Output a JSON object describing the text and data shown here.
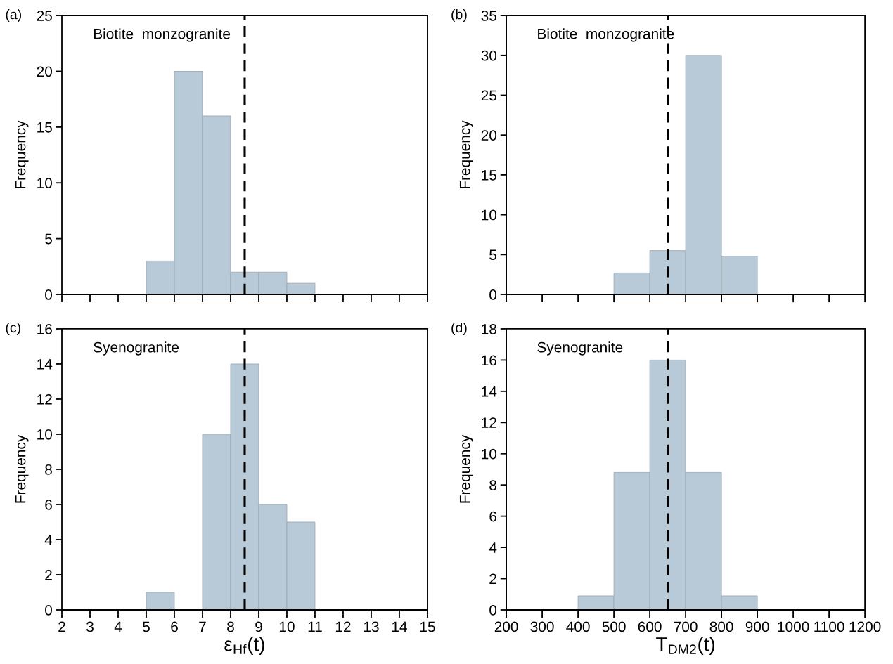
{
  "chart_data": [
    {
      "type": "histogram",
      "bins": [
        5,
        6,
        7,
        8,
        9,
        10,
        11
      ],
      "values": [
        3,
        20,
        16,
        2,
        2,
        1
      ],
      "color": "#b8cad7",
      "ylabel": "Frequency",
      "xlim": [
        2,
        15
      ],
      "xticks": [
        2,
        3,
        4,
        5,
        6,
        7,
        8,
        9,
        10,
        11,
        12,
        13,
        14,
        15
      ],
      "ylim": [
        0,
        25
      ],
      "yticks": [
        0,
        5,
        10,
        15,
        20,
        25
      ],
      "tick_labels": "y",
      "annotations": [
        "(a)",
        "Biotite  monzogranite"
      ],
      "ref_lines": [
        {
          "axis": "x",
          "value": 8.5,
          "line_style": "dashed",
          "color": "#000000"
        }
      ]
    },
    {
      "type": "histogram",
      "bins": [
        500,
        600,
        700,
        800,
        900
      ],
      "values": [
        2.7,
        5.5,
        30,
        4.8
      ],
      "color": "#b8cad7",
      "ylabel": "Frequency",
      "xlim": [
        200,
        1200
      ],
      "xticks": [
        200,
        300,
        400,
        500,
        600,
        700,
        800,
        900,
        1000,
        1100,
        1200
      ],
      "ylim": [
        0,
        35
      ],
      "yticks": [
        0,
        5,
        10,
        15,
        20,
        25,
        30,
        35
      ],
      "tick_labels": "y",
      "annotations": [
        "(b)",
        "Biotite  monzogranite"
      ],
      "ref_lines": [
        {
          "axis": "x",
          "value": 650,
          "line_style": "dashed",
          "color": "#000000"
        }
      ]
    },
    {
      "type": "histogram",
      "bins": [
        5,
        6,
        7,
        8,
        9,
        10,
        11
      ],
      "values": [
        1,
        0,
        10,
        14,
        6,
        5
      ],
      "color": "#b8cad7",
      "xlabel": "ε$_{Hf}$(t)",
      "ylabel": "Frequency",
      "xlim": [
        2,
        15
      ],
      "xticks": [
        2,
        3,
        4,
        5,
        6,
        7,
        8,
        9,
        10,
        11,
        12,
        13,
        14,
        15
      ],
      "ylim": [
        0,
        16
      ],
      "yticks": [
        0,
        2,
        4,
        6,
        8,
        10,
        12,
        14,
        16
      ],
      "annotations": [
        "(c)",
        "Syenogranite"
      ],
      "ref_lines": [
        {
          "axis": "x",
          "value": 8.5,
          "line_style": "dashed",
          "color": "#000000"
        }
      ]
    },
    {
      "type": "histogram",
      "bins": [
        400,
        500,
        600,
        700,
        800,
        900
      ],
      "values": [
        0.9,
        8.8,
        16,
        8.8,
        0.9
      ],
      "color": "#b8cad7",
      "xlabel": "T$_{DM2}$(t)",
      "ylabel": "Frequency",
      "xlim": [
        200,
        1200
      ],
      "xticks": [
        200,
        300,
        400,
        500,
        600,
        700,
        800,
        900,
        1000,
        1100,
        1200
      ],
      "ylim": [
        0,
        18
      ],
      "yticks": [
        0,
        2,
        4,
        6,
        8,
        10,
        12,
        14,
        16,
        18
      ],
      "annotations": [
        "(d)",
        "Syenogranite"
      ],
      "ref_lines": [
        {
          "axis": "x",
          "value": 650,
          "line_style": "dashed",
          "color": "#000000"
        }
      ]
    }
  ]
}
